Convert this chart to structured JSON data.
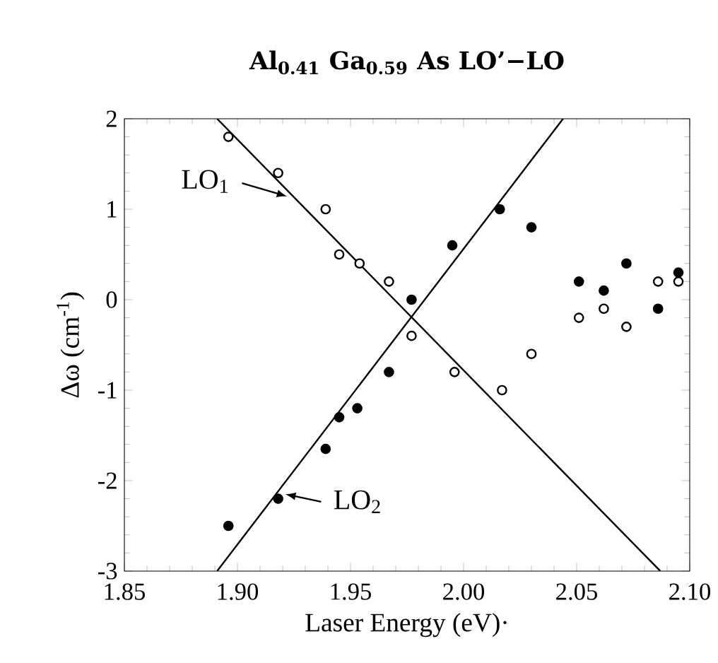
{
  "chart_data": {
    "type": "scatter",
    "title": "Al$_{0.41}$ Ga$_{0.59}$ As      LO’−LO",
    "xlabel": "Laser Energy   (eV)·",
    "ylabel": "Δω  (cm$^{-1}$)",
    "xlim": [
      1.85,
      2.1
    ],
    "xticks": [
      {
        "value": 1.85,
        "label": "1.85"
      },
      {
        "value": 1.9,
        "label": "1.90"
      },
      {
        "value": 1.95,
        "label": "1.95"
      },
      {
        "value": 2.0,
        "label": "2.00"
      },
      {
        "value": 2.05,
        "label": "2.05"
      },
      {
        "value": 2.1,
        "label": "2.10"
      }
    ],
    "ylim": [
      -3,
      2
    ],
    "yticks": [
      -3,
      -2,
      -1,
      0,
      1,
      2
    ],
    "grid": false,
    "series": [
      {
        "color": "#000000",
        "marker": "circle",
        "x": [
          1.896,
          1.918,
          1.939,
          1.945,
          1.954,
          1.967,
          1.977,
          1.996,
          2.017,
          2.03,
          2.051,
          2.062,
          2.072,
          2.086,
          2.095
        ],
        "values": [
          1.8,
          1.4,
          1.0,
          0.5,
          0.4,
          0.2,
          -0.4,
          -0.8,
          -1.0,
          -0.6,
          -0.2,
          -0.1,
          -0.3,
          0.2,
          0.2
        ]
      },
      {
        "color": "#000000",
        "marker": "circle",
        "x": [
          1.896,
          1.918,
          1.939,
          1.945,
          1.953,
          1.967,
          1.977,
          1.995,
          2.016,
          2.03,
          2.051,
          2.062,
          2.072,
          2.086,
          2.095
        ],
        "values": [
          -2.5,
          -2.2,
          -1.65,
          -1.3,
          -1.2,
          -0.8,
          0.0,
          0.6,
          1.0,
          0.8,
          0.2,
          0.1,
          0.4,
          -0.1,
          0.3
        ]
      },
      {
        "type": "line",
        "color": "#000000",
        "x": [
          1.891,
          2.087
        ],
        "values": [
          2,
          -3
        ]
      },
      {
        "type": "line",
        "color": "#000000",
        "x": [
          1.891,
          2.044
        ],
        "values": [
          -3,
          2
        ]
      }
    ],
    "annotations": [
      {
        "text": "LO$_{1}$",
        "x": 1.927,
        "y": 1.1
      },
      {
        "text": "LO$_{2}$",
        "x": 1.917,
        "y": -2.15
      }
    ]
  }
}
